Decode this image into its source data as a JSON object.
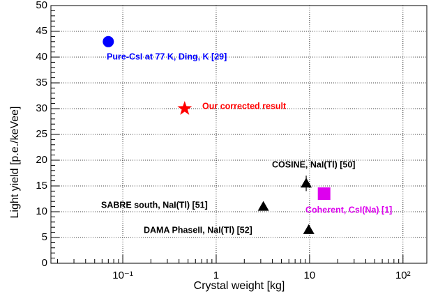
{
  "chart_data": {
    "type": "scatter",
    "xlabel": "Crystal weight [kg]",
    "ylabel": "Light yield [p.e./keVee]",
    "xscale": "log",
    "grid": true,
    "xlim": [
      0.017,
      180
    ],
    "ylim": [
      0,
      50
    ],
    "xticks": [
      {
        "value": 0.1,
        "label": "10⁻¹"
      },
      1,
      10,
      {
        "value": 100,
        "label": "10²"
      }
    ],
    "yticks": [
      0,
      5,
      10,
      15,
      20,
      25,
      30,
      35,
      40,
      45,
      50
    ],
    "series": [
      {
        "name": "Pure-CsI at 77 K, Ding, K [29]",
        "color": "#0000ff",
        "marker": "circle",
        "x": [
          0.07
        ],
        "values": [
          43
        ]
      },
      {
        "name": "Our corrected result",
        "color": "#ff0000",
        "marker": "star",
        "x": [
          0.46
        ],
        "values": [
          30
        ]
      },
      {
        "name": "COSINE, NaI(Tl) [50]",
        "color": "#000000",
        "marker": "triangle",
        "x": [
          9.2
        ],
        "values": [
          15.5
        ],
        "errors": [
          1.5
        ]
      },
      {
        "name": "SABRE south, NaI(Tl) [51]",
        "color": "#000000",
        "marker": "triangle",
        "x": [
          3.2
        ],
        "values": [
          11
        ]
      },
      {
        "name": "DAMA PhaseII, NaI(Tl) [52]",
        "color": "#000000",
        "marker": "triangle",
        "x": [
          9.8
        ],
        "values": [
          6.5
        ]
      },
      {
        "name": "Coherent, CsI(Na) [1]",
        "color": "#dd00ee",
        "marker": "square",
        "x": [
          14.3
        ],
        "values": [
          13.5
        ]
      }
    ]
  }
}
